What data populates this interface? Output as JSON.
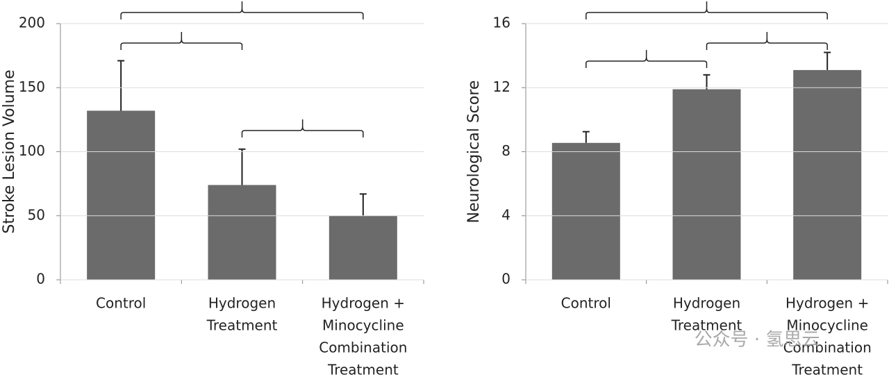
{
  "chart_data": [
    {
      "type": "bar",
      "y_label": "Stroke Lesion Volume",
      "categories": [
        [
          "Control"
        ],
        [
          "Hydrogen",
          "Treatment"
        ],
        [
          "Hydrogen +",
          "Minocycline",
          "Combination",
          "Treatment"
        ]
      ],
      "values": [
        132,
        74,
        50
      ],
      "errors": [
        39,
        28,
        17
      ],
      "color": "#6b6b6b",
      "ylim": [
        0,
        200
      ],
      "yticks": [
        0,
        50,
        100,
        150,
        200
      ],
      "grid": true
    },
    {
      "type": "bar",
      "y_label": "Neurological Score",
      "categories": [
        [
          "Control"
        ],
        [
          "Hydrogen",
          "Treatment"
        ],
        [
          "Hydrogen +",
          "Minocycline",
          "Combination",
          "Treatment"
        ]
      ],
      "values": [
        8.55,
        11.9,
        13.1
      ],
      "errors": [
        0.7,
        0.9,
        1.1
      ],
      "color": "#6b6b6b",
      "ylim": [
        0,
        16
      ],
      "yticks": [
        0,
        4,
        8,
        12,
        16
      ],
      "grid": true
    }
  ],
  "watermark": "公众号 · 氢思云"
}
